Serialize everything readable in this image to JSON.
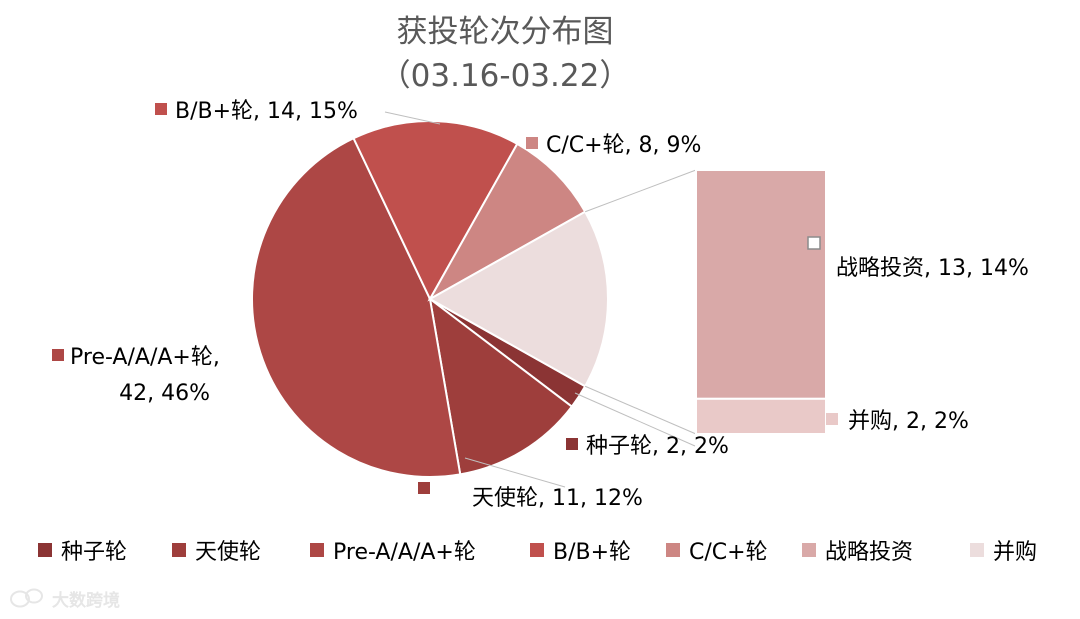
{
  "chart_data": {
    "type": "bar-of-pie",
    "title": "获投轮次分布图",
    "subtitle": "（03.16-03.22）",
    "slices": [
      {
        "name": "种子轮",
        "value": 2,
        "percent": "2%",
        "color": "#8b3434",
        "label": "种子轮, 2, 2%"
      },
      {
        "name": "天使轮",
        "value": 11,
        "percent": "12%",
        "color": "#9e3e3c",
        "label": "天使轮, 11, 12%"
      },
      {
        "name": "Pre-A/A/A+轮",
        "value": 42,
        "percent": "46%",
        "color": "#ad4745",
        "label": "Pre-A/A/A+轮, 42, 46%",
        "label_line1": "Pre-A/A/A+轮,",
        "label_line2": "42, 46%"
      },
      {
        "name": "B/B+轮",
        "value": 14,
        "percent": "15%",
        "color": "#c0504d",
        "label": "B/B+轮, 14, 15%"
      },
      {
        "name": "C/C+轮",
        "value": 8,
        "percent": "9%",
        "color": "#cd8683",
        "label": "C/C+轮, 8, 9%"
      }
    ],
    "other_slice": {
      "value": 15,
      "color": "#ecdddd"
    },
    "bar_segments": [
      {
        "name": "战略投资",
        "value": 13,
        "percent": "14%",
        "color": "#d9a9a8",
        "label": "战略投资, 13, 14%"
      },
      {
        "name": "并购",
        "value": 2,
        "percent": "2%",
        "color": "#e9c9c8",
        "label": "并购, 2, 2%"
      }
    ],
    "legend": {
      "position": "bottom",
      "entries": [
        {
          "name": "种子轮",
          "color": "#8b3434"
        },
        {
          "name": "天使轮",
          "color": "#9e3e3c"
        },
        {
          "name": "Pre-A/A/A+轮",
          "color": "#ad4745"
        },
        {
          "name": "B/B+轮",
          "color": "#c0504d"
        },
        {
          "name": "C/C+轮",
          "color": "#cd8683"
        },
        {
          "name": "战略投资",
          "color": "#d9a9a8"
        },
        {
          "name": "并购",
          "color": "#ecdddd"
        }
      ]
    }
  },
  "watermark": {
    "text": "大数跨境",
    "icon": "wechat-logo-icon"
  }
}
